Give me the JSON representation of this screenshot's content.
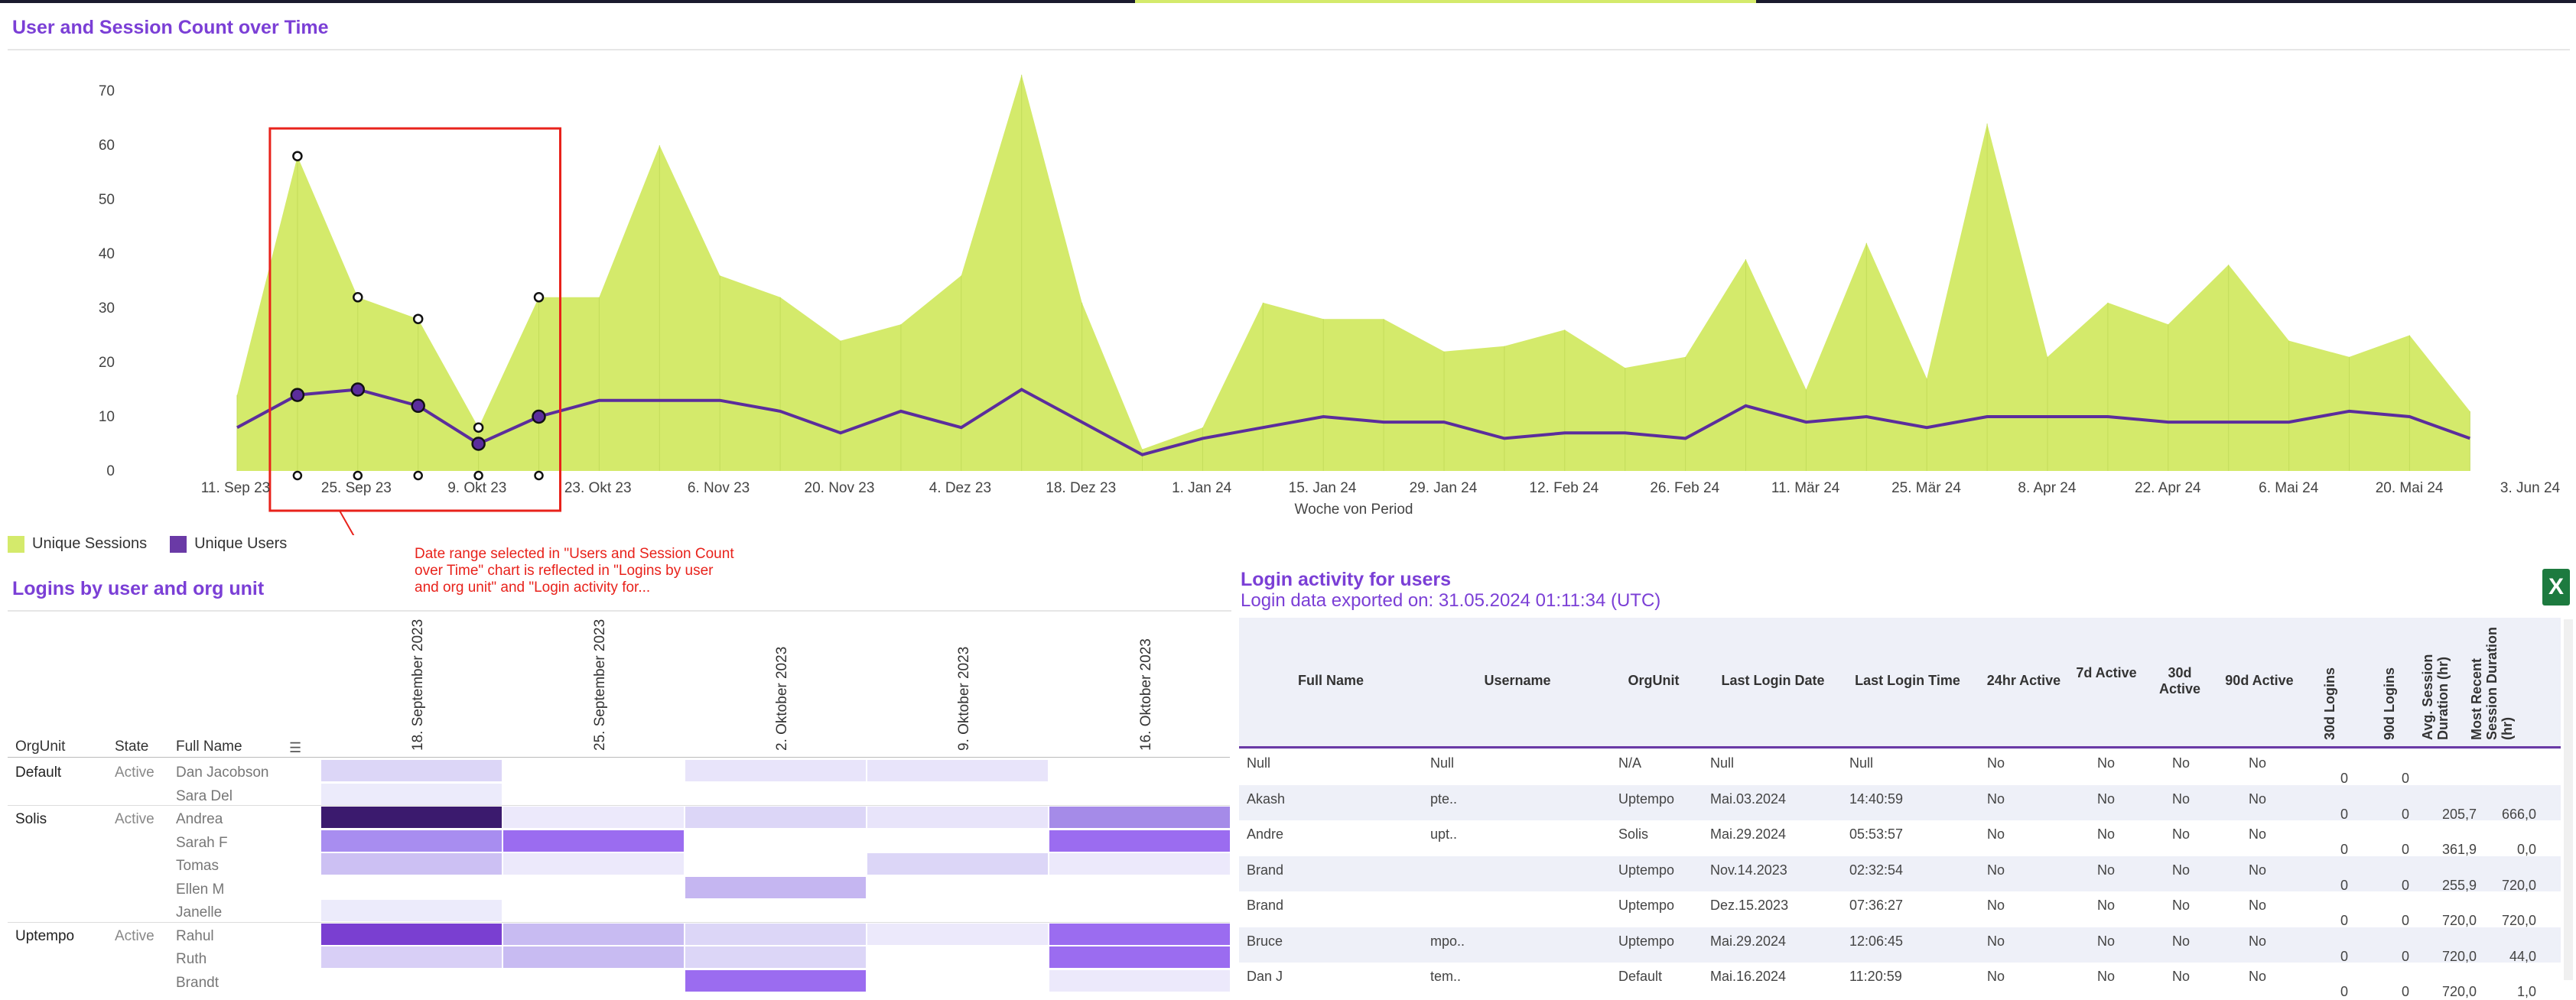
{
  "top_chart": {
    "title": "User and Session Count over Time",
    "x_title": "Woche von Period",
    "legend": [
      {
        "label": "Unique Sessions",
        "color": "#d4ea6b"
      },
      {
        "label": "Unique Users",
        "color": "#6a3aa6"
      }
    ]
  },
  "chart_data": {
    "type": "area",
    "title": "User and Session Count over Time",
    "xlabel": "Woche von Period",
    "ylabel": "",
    "ylim": [
      0,
      75
    ],
    "yticks": [
      "0",
      "10",
      "20",
      "30",
      "40",
      "50",
      "60",
      "70"
    ],
    "xticks": [
      "11. Sep 23",
      "25. Sep 23",
      "9. Okt 23",
      "23. Okt 23",
      "6. Nov 23",
      "20. Nov 23",
      "4. Dez 23",
      "18. Dez 23",
      "1. Jan 24",
      "15. Jan 24",
      "29. Jan 24",
      "12. Feb 24",
      "26. Feb 24",
      "11. Mär 24",
      "25. Mär 24",
      "8. Apr 24",
      "22. Apr 24",
      "6. Mai 24",
      "20. Mai 24",
      "3. Jun 24"
    ],
    "series": [
      {
        "name": "Unique Sessions",
        "type": "area",
        "color": "#d4ea6b",
        "values": [
          14,
          58,
          32,
          28,
          8,
          32,
          32,
          60,
          36,
          32,
          24,
          27,
          36,
          73,
          31,
          4,
          8,
          31,
          28,
          28,
          22,
          23,
          26,
          19,
          21,
          39,
          15,
          42,
          17,
          64,
          21,
          31,
          27,
          38,
          24,
          21,
          25,
          11
        ]
      },
      {
        "name": "Unique Users",
        "type": "line",
        "color": "#5b2d9c",
        "values": [
          8,
          14,
          15,
          12,
          5,
          10,
          13,
          13,
          13,
          11,
          7,
          11,
          8,
          15,
          9,
          3,
          6,
          8,
          10,
          9,
          9,
          6,
          7,
          7,
          6,
          12,
          9,
          10,
          8,
          10,
          10,
          10,
          9,
          9,
          9,
          11,
          10,
          6
        ]
      }
    ],
    "selection_start_index": 1,
    "selection_end_index": 5
  },
  "annotation": "Date range selected in \"Users and Session Count over Time\" chart is reflected in \"Logins by user and org unit\" and \"Login activity for...",
  "heatmap": {
    "title": "Logins by user and org unit",
    "headers": {
      "orgunit": "OrgUnit",
      "state": "State",
      "fullname": "Full Name"
    },
    "columns": [
      "18. September 2023",
      "25. September 2023",
      "2. Oktober 2023",
      "9. Oktober 2023",
      "16. Oktober 2023"
    ],
    "rows": [
      {
        "org": "Default",
        "state": "Active",
        "name": "Dan Jacobson",
        "cells": [
          "#dcd6f7",
          "#ffffff",
          "#e8e4fa",
          "#e8e4fa",
          "#ffffff"
        ]
      },
      {
        "org": "",
        "state": "",
        "name": "Sara Del",
        "cells": [
          "#ecebfb",
          "#ffffff",
          "#ffffff",
          "#ffffff",
          "#ffffff"
        ]
      },
      {
        "org": "Solis",
        "state": "Active",
        "name": "Andrea",
        "cells": [
          "#3b1a6e",
          "#ece9fb",
          "#dcd6f7",
          "#e8e4fa",
          "#a58be8"
        ]
      },
      {
        "org": "",
        "state": "",
        "name": "Sarah F",
        "cells": [
          "#a88df0",
          "#9b6cf0",
          "#ffffff",
          "#ffffff",
          "#9b6cf0"
        ]
      },
      {
        "org": "",
        "state": "",
        "name": "Tomas",
        "cells": [
          "#ccc0f3",
          "#ece9fb",
          "#ffffff",
          "#dcd6f7",
          "#ece9fb"
        ]
      },
      {
        "org": "",
        "state": "",
        "name": "Ellen M",
        "cells": [
          "#ffffff",
          "#ffffff",
          "#c5b6f1",
          "#ffffff",
          "#ffffff"
        ]
      },
      {
        "org": "",
        "state": "",
        "name": "Janelle",
        "cells": [
          "#ecebfb",
          "#ffffff",
          "#ffffff",
          "#ffffff",
          "#ffffff"
        ]
      },
      {
        "org": "Uptempo",
        "state": "Active",
        "name": "Rahul",
        "cells": [
          "#7a3fd1",
          "#c8bbf2",
          "#dcd6f7",
          "#ece9fb",
          "#9b6cf0"
        ]
      },
      {
        "org": "",
        "state": "",
        "name": "Ruth",
        "cells": [
          "#d8cff6",
          "#c8bbf2",
          "#dcd6f7",
          "#ffffff",
          "#9b6cf0"
        ]
      },
      {
        "org": "",
        "state": "",
        "name": "Brandt",
        "cells": [
          "#ffffff",
          "#ffffff",
          "#9b6cf0",
          "#ffffff",
          "#ece9fb"
        ]
      }
    ]
  },
  "table": {
    "title": "Login activity for users",
    "subtitle": "Login data exported on: 31.05.2024 01:11:34 (UTC)",
    "headers": [
      "Full Name",
      "Username",
      "OrgUnit",
      "Last Login Date",
      "Last Login Time",
      "24hr Active",
      "7d Active",
      "30d Active",
      "90d Active",
      "30d Logins",
      "90d Logins",
      "Avg. Session Duration (hr)",
      "Most Recent Session Duration (hr)"
    ],
    "rows": [
      {
        "name": "Null",
        "user": "Null",
        "org": "N/A",
        "date": "Null",
        "time": "Null",
        "d24": "No",
        "d7": "No",
        "d30": "No",
        "d90": "No",
        "l30": "0",
        "l90": "0",
        "avg": "",
        "recent": ""
      },
      {
        "name": "Akash",
        "user": "pte..",
        "org": "Uptempo",
        "date": "Mai.03.2024",
        "time": "14:40:59",
        "d24": "No",
        "d7": "No",
        "d30": "No",
        "d90": "No",
        "l30": "0",
        "l90": "0",
        "avg": "205,7",
        "recent": "666,0"
      },
      {
        "name": "Andre",
        "user": "upt..",
        "org": "Solis",
        "date": "Mai.29.2024",
        "time": "05:53:57",
        "d24": "No",
        "d7": "No",
        "d30": "No",
        "d90": "No",
        "l30": "0",
        "l90": "0",
        "avg": "361,9",
        "recent": "0,0"
      },
      {
        "name": "Brand",
        "user": "",
        "org": "Uptempo",
        "date": "Nov.14.2023",
        "time": "02:32:54",
        "d24": "No",
        "d7": "No",
        "d30": "No",
        "d90": "No",
        "l30": "0",
        "l90": "0",
        "avg": "255,9",
        "recent": "720,0"
      },
      {
        "name": "Brand",
        "user": "",
        "org": "Uptempo",
        "date": "Dez.15.2023",
        "time": "07:36:27",
        "d24": "No",
        "d7": "No",
        "d30": "No",
        "d90": "No",
        "l30": "0",
        "l90": "0",
        "avg": "720,0",
        "recent": "720,0"
      },
      {
        "name": "Bruce",
        "user": "mpo..",
        "org": "Uptempo",
        "date": "Mai.29.2024",
        "time": "12:06:45",
        "d24": "No",
        "d7": "No",
        "d30": "No",
        "d90": "No",
        "l30": "0",
        "l90": "0",
        "avg": "720,0",
        "recent": "44,0"
      },
      {
        "name": "Dan J",
        "user": "tem..",
        "org": "Default",
        "date": "Mai.16.2024",
        "time": "11:20:59",
        "d24": "No",
        "d7": "No",
        "d30": "No",
        "d90": "No",
        "l30": "0",
        "l90": "0",
        "avg": "720,0",
        "recent": "1,0"
      }
    ]
  }
}
